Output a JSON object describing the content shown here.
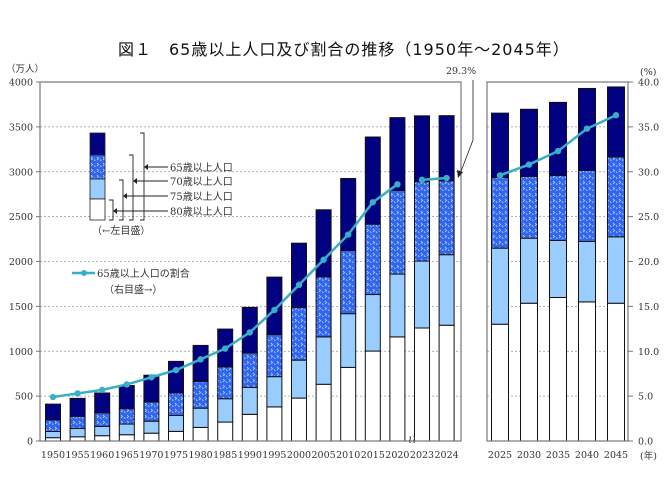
{
  "chart_data": {
    "type": "bar",
    "stacked": true,
    "title": "図１　65歳以上人口及び割合の推移（1950年～2045年）",
    "ylabel_left": "（万人）",
    "ylabel_right": "(%)",
    "xlabel": "(年)",
    "ylim_left": [
      0,
      4000
    ],
    "ylim_right": [
      0,
      40
    ],
    "yticks_left": [
      "0",
      "500",
      "1000",
      "1500",
      "2000",
      "2500",
      "3000",
      "3500",
      "4000"
    ],
    "yticks_right": [
      "0.0",
      "5.0",
      "10.0",
      "15.0",
      "20.0",
      "25.0",
      "30.0",
      "35.0",
      "40.0"
    ],
    "grid": true,
    "panels": [
      {
        "categories": [
          "1950",
          "1955",
          "1960",
          "1965",
          "1970",
          "1975",
          "1980",
          "1985",
          "1990",
          "1995",
          "2000",
          "2005",
          "2010",
          "2015",
          "2020",
          "2023",
          "2024"
        ],
        "series": [
          {
            "name": "80歳以上人口",
            "values": [
              37,
              47,
              59,
              70,
              87,
              107,
              151,
              211,
              297,
              380,
              478,
              632,
              820,
              1002,
              1160,
              1259,
              1290
            ]
          },
          {
            "name": "75歳以上人口",
            "values": [
              106,
              139,
              163,
              189,
              221,
              284,
              366,
              471,
              597,
              717,
              901,
              1160,
              1419,
              1632,
              1860,
              2005,
              2076
            ]
          },
          {
            "name": "70歳以上人口",
            "values": [
              234,
              275,
              315,
              360,
              436,
              535,
              664,
              825,
              982,
              1186,
              1487,
              1829,
              2123,
              2416,
              2792,
              2889,
              2898
            ]
          },
          {
            "name": "65歳以上人口",
            "values": [
              411,
              475,
              535,
              618,
              733,
              887,
              1065,
              1247,
              1489,
              1826,
              2204,
              2576,
              2925,
              3387,
              3603,
              3623,
              3625
            ]
          }
        ],
        "ratio": {
          "name": "65歳以上人口の割合",
          "values": [
            4.9,
            5.3,
            5.7,
            6.3,
            7.1,
            7.9,
            9.1,
            10.3,
            12.1,
            14.6,
            17.4,
            20.2,
            23.0,
            26.6,
            28.6,
            29.1,
            29.3
          ]
        }
      },
      {
        "categories": [
          "2025",
          "2030",
          "2035",
          "2040",
          "2045"
        ],
        "series": [
          {
            "name": "80歳以上人口",
            "values": [
              1301,
              1535,
              1599,
              1550,
              1535
            ]
          },
          {
            "name": "75歳以上人口",
            "values": [
              2149,
              2260,
              2234,
              2223,
              2275
            ]
          },
          {
            "name": "70歳以上人口",
            "values": [
              2937,
              2948,
              2959,
              3015,
              3164
            ]
          },
          {
            "name": "65歳以上人口",
            "values": [
              3653,
              3696,
              3773,
              3928,
              3945
            ]
          }
        ],
        "ratio": {
          "name": "65歳以上人口の割合",
          "values": [
            29.6,
            30.8,
            32.3,
            34.8,
            36.3
          ]
        }
      }
    ],
    "annotation": "29.3%",
    "legend": {
      "bars": [
        "65歳以上人口",
        "70歳以上人口",
        "75歳以上人口",
        "80歳以上人口"
      ],
      "bars_note": "（←左目盛）",
      "line": "65歳以上人口の割合",
      "line_note": "（右目盛→）",
      "placement": "top-left"
    },
    "colors": {
      "age65_69": "#000080",
      "age70_74": "#3366ee",
      "age75_79": "#99ccff",
      "age80plus": "#ffffff",
      "ratio_line": "#3aaec6"
    }
  }
}
